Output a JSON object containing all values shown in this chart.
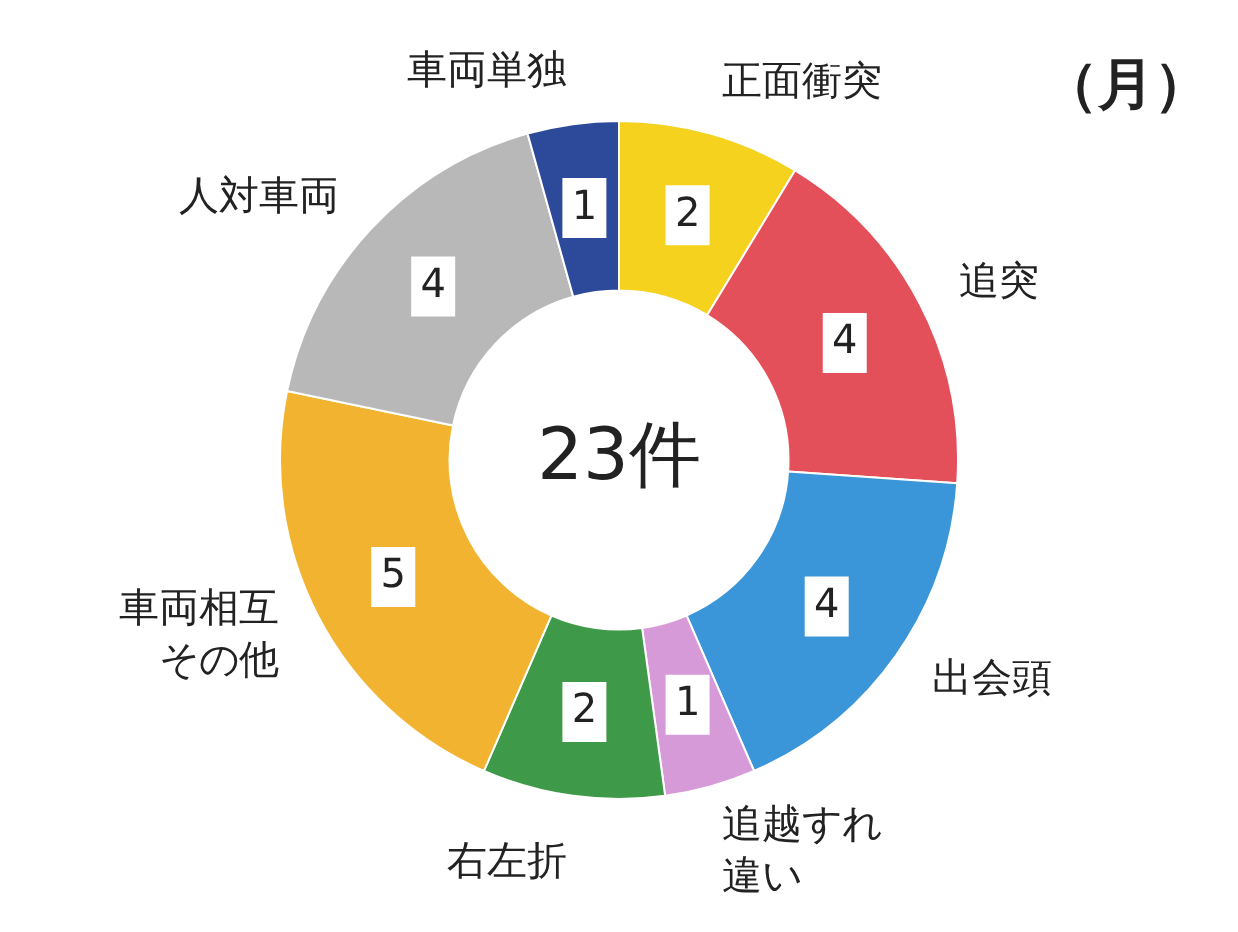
{
  "chart_data": {
    "type": "donut",
    "title": "（月）",
    "categories": [
      "正面衝突",
      "追突",
      "出会頭",
      "追越すれ違い",
      "右左折",
      "車両相互その他",
      "人対車両",
      "車両単独"
    ],
    "values": [
      2,
      4,
      4,
      1,
      2,
      5,
      4,
      1
    ],
    "colors": [
      "#f5d21e",
      "#e4505a",
      "#3a96d8",
      "#d79ad8",
      "#3e9a48",
      "#f2b430",
      "#b8b8b8",
      "#2d4a9a"
    ],
    "data_labels": true,
    "annotations": [
      "23件"
    ],
    "legend": false
  }
}
